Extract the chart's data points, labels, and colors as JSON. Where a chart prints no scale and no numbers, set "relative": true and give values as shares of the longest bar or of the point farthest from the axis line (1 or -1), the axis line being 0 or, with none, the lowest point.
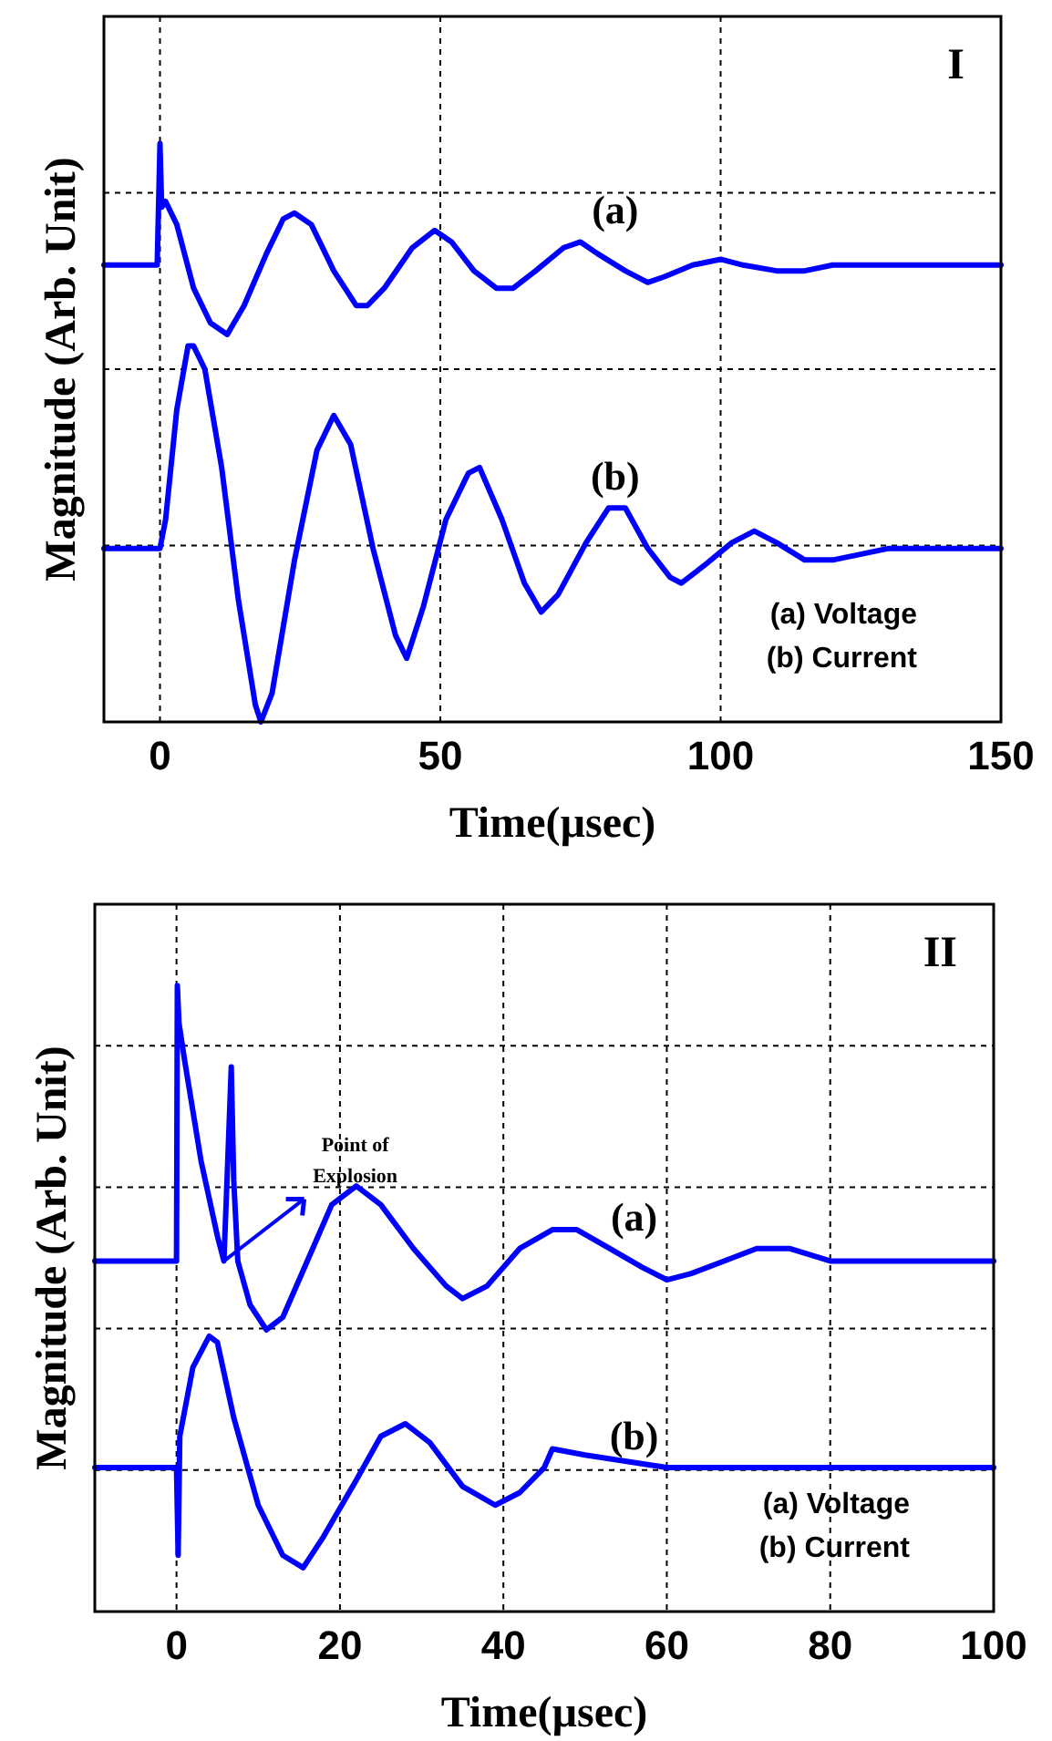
{
  "chart_data": [
    {
      "type": "line",
      "title": "I",
      "xlabel": "Time(µsec)",
      "ylabel": "Magnitude (Arb. Unit)",
      "relative": true,
      "grid": true,
      "marker": "none",
      "line_style": "solid",
      "xlim": [
        -10,
        150
      ],
      "xticks": [
        0,
        50,
        100,
        150
      ],
      "annotations": [
        "(a) Voltage",
        "(b) Current"
      ],
      "series": [
        {
          "name": "(a)",
          "color": "#0000ff",
          "x": [
            -10,
            -0.5,
            0,
            0.3,
            1,
            3,
            6,
            9,
            12,
            15,
            19,
            22,
            24,
            27,
            31,
            35,
            37,
            40,
            45,
            49,
            52,
            56,
            60,
            63,
            67,
            72,
            75,
            78,
            83,
            87,
            90,
            95,
            100,
            104,
            110,
            115,
            120,
            130,
            140,
            150
          ],
          "values": [
            0.79,
            0.79,
            1.0,
            0.89,
            0.9,
            0.86,
            0.75,
            0.69,
            0.67,
            0.72,
            0.81,
            0.87,
            0.88,
            0.86,
            0.78,
            0.72,
            0.72,
            0.75,
            0.82,
            0.85,
            0.83,
            0.78,
            0.75,
            0.75,
            0.78,
            0.82,
            0.83,
            0.81,
            0.78,
            0.76,
            0.77,
            0.79,
            0.8,
            0.79,
            0.78,
            0.78,
            0.79,
            0.79,
            0.79,
            0.79
          ]
        },
        {
          "name": "(b)",
          "color": "#0000ff",
          "x": [
            -10,
            0,
            1,
            3,
            5,
            6,
            8,
            11,
            14,
            17,
            18,
            20,
            24,
            28,
            31,
            34,
            38,
            42,
            44,
            47,
            51,
            55,
            57,
            61,
            65,
            68,
            71,
            76,
            80,
            83,
            87,
            91,
            93,
            97,
            102,
            106,
            110,
            115,
            120,
            130,
            150
          ],
          "values": [
            0.3,
            0.3,
            0.35,
            0.54,
            0.65,
            0.65,
            0.61,
            0.44,
            0.21,
            0.03,
            0,
            0.05,
            0.28,
            0.47,
            0.53,
            0.48,
            0.3,
            0.15,
            0.11,
            0.2,
            0.35,
            0.43,
            0.44,
            0.35,
            0.24,
            0.19,
            0.22,
            0.31,
            0.37,
            0.37,
            0.3,
            0.25,
            0.24,
            0.27,
            0.31,
            0.33,
            0.31,
            0.28,
            0.28,
            0.3,
            0.3
          ]
        }
      ]
    },
    {
      "type": "line",
      "title": "II",
      "xlabel": "Time(µsec)",
      "ylabel": "Magnitude (Arb. Unit)",
      "relative": true,
      "grid": true,
      "marker": "none",
      "line_style": "solid",
      "xlim": [
        -10,
        100
      ],
      "xticks": [
        0,
        20,
        40,
        60,
        80,
        100
      ],
      "annotations": [
        {
          "text": "Point of Explosion",
          "x": 5.8,
          "y": 0.56
        },
        "(a) Voltage",
        "(b) Current"
      ],
      "series": [
        {
          "name": "(a)",
          "color": "#0000ff",
          "x": [
            -10,
            0,
            0.1,
            0.3,
            1,
            3,
            5,
            5.8,
            6.3,
            6.7,
            7,
            7.5,
            9,
            11,
            13,
            16,
            19,
            22,
            25,
            29,
            33,
            35,
            38,
            42,
            46,
            49,
            53,
            57,
            60,
            63,
            67,
            71,
            75,
            80,
            85,
            90,
            100
          ],
          "values": [
            0.56,
            0.56,
            1.0,
            0.94,
            0.88,
            0.72,
            0.6,
            0.56,
            0.73,
            0.87,
            0.69,
            0.56,
            0.49,
            0.45,
            0.47,
            0.56,
            0.65,
            0.68,
            0.65,
            0.58,
            0.52,
            0.5,
            0.52,
            0.58,
            0.61,
            0.61,
            0.58,
            0.55,
            0.53,
            0.54,
            0.56,
            0.58,
            0.58,
            0.56,
            0.56,
            0.56,
            0.56
          ]
        },
        {
          "name": "(b)",
          "color": "#0000ff",
          "x": [
            -10,
            0,
            0.2,
            0.4,
            2,
            4,
            5,
            7,
            10,
            13,
            15.5,
            18,
            22,
            25,
            28,
            31,
            35,
            39,
            42,
            45,
            46,
            50,
            60,
            70,
            80,
            100
          ],
          "values": [
            0.23,
            0.23,
            0.09,
            0.28,
            0.39,
            0.44,
            0.43,
            0.31,
            0.17,
            0.09,
            0.07,
            0.12,
            0.21,
            0.28,
            0.3,
            0.27,
            0.2,
            0.17,
            0.19,
            0.23,
            0.26,
            0.25,
            0.23,
            0.23,
            0.23,
            0.23
          ]
        }
      ]
    }
  ]
}
